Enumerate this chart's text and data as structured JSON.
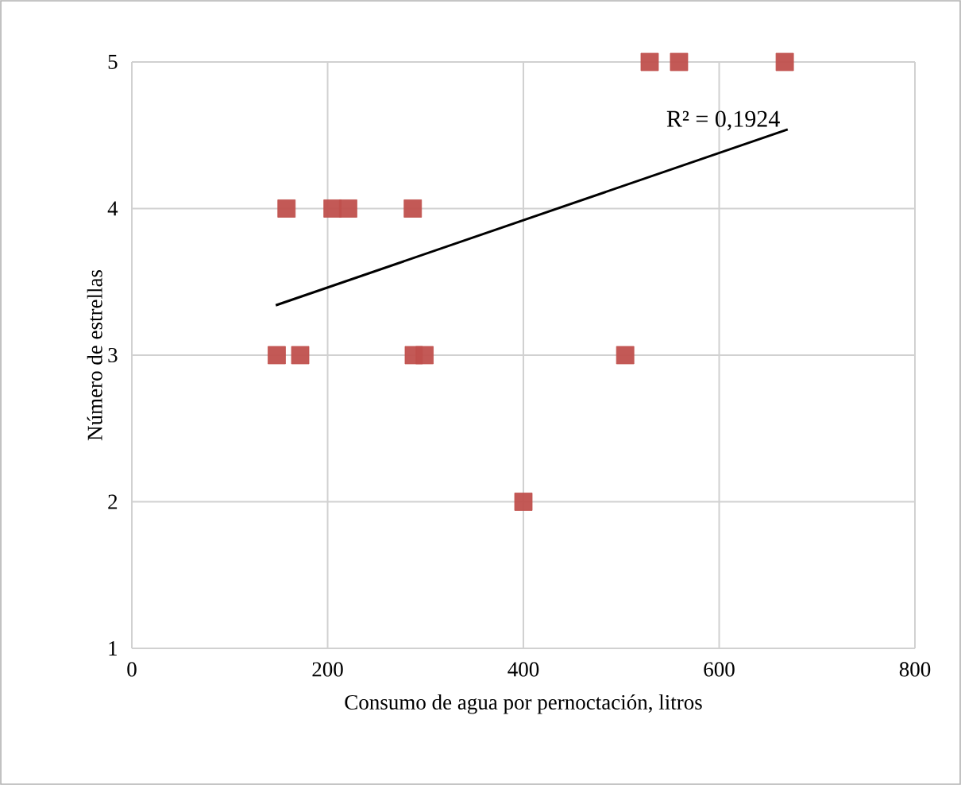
{
  "chart_data": {
    "type": "scatter",
    "xlabel": "Consumo de agua por pernoctación, litros",
    "ylabel": "Número de estrellas",
    "xlim": [
      0,
      800
    ],
    "xticks": [
      0,
      200,
      400,
      600,
      800
    ],
    "ylim": [
      1,
      5
    ],
    "yticks": [
      1,
      2,
      3,
      4,
      5
    ],
    "grid": true,
    "marker": "square",
    "series": [
      {
        "color": "#c0504d",
        "x": [
          529,
          559,
          667,
          158,
          205,
          221,
          287,
          148,
          172,
          288,
          299,
          504,
          400
        ],
        "values": [
          5,
          5,
          5,
          4,
          4,
          4,
          4,
          3,
          3,
          3,
          3,
          3,
          2
        ]
      },
      {
        "type": "line",
        "color": "#000000",
        "marker": "none",
        "x": [
          147,
          670
        ],
        "values": [
          3.34,
          4.54
        ]
      }
    ],
    "annotations": [
      "R² = 0,1924"
    ]
  }
}
